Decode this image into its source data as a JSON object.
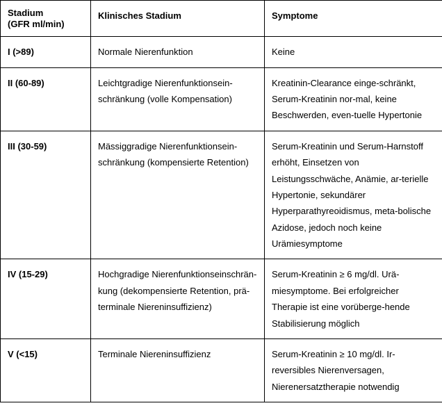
{
  "table": {
    "headers": {
      "stadium_line1": "Stadium",
      "stadium_line2": "(GFR ml/min)",
      "klinisch": "Klinisches Stadium",
      "symptome": "Symptome"
    },
    "rows": [
      {
        "stadium": "I (>89)",
        "klinisch": "Normale Nierenfunktion",
        "symptome": "Keine"
      },
      {
        "stadium": "II (60-89)",
        "klinisch": "Leichtgradige Nierenfunktionsein-schränkung (volle Kompensation)",
        "symptome": "Kreatinin-Clearance einge-schränkt, Serum-Kreatinin nor-mal, keine Beschwerden, even-tuelle Hypertonie"
      },
      {
        "stadium": "III (30-59)",
        "klinisch": "Mässiggradige Nierenfunktionsein-schränkung (kompensierte Retention)",
        "symptome": "Serum-Kreatinin und Serum-Harnstoff erhöht, Einsetzen von Leistungsschwäche, Anämie, ar-terielle Hypertonie, sekundärer Hyperparathyreoidismus, meta-bolische Azidose, jedoch noch keine Urämiesymptome"
      },
      {
        "stadium": "IV (15-29)",
        "klinisch": "Hochgradige Nierenfunktionseinschrän-kung (dekompensierte Retention, prä-terminale Niereninsuffizienz)",
        "symptome": "Serum-Kreatinin ≥ 6 mg/dl. Urä-miesymptome. Bei erfolgreicher Therapie ist eine vorüberge-hende Stabilisierung möglich"
      },
      {
        "stadium": "V (<15)",
        "klinisch": "Terminale Niereninsuffizienz",
        "symptome": "Serum-Kreatinin ≥ 10 mg/dl. Ir-reversibles Nierenversagen, Nierenersatztherapie notwendig"
      }
    ]
  }
}
